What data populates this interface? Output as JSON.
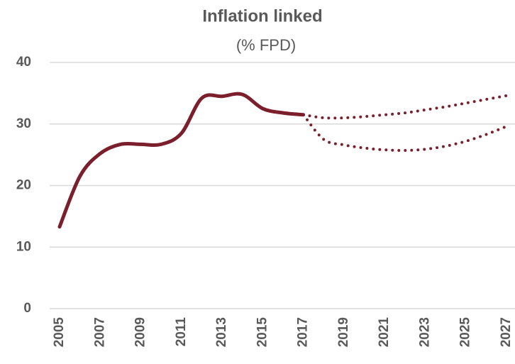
{
  "chart_data": {
    "type": "line",
    "title": "Inflation linked",
    "subtitle": "(% FPD)",
    "x": [
      2005,
      2006,
      2007,
      2008,
      2009,
      2010,
      2011,
      2012,
      2013,
      2014,
      2015,
      2016,
      2017,
      2018,
      2019,
      2020,
      2021,
      2022,
      2023,
      2024,
      2025,
      2026,
      2027
    ],
    "series": [
      {
        "color": "#7a1f2b",
        "style": "solid",
        "values": [
          13.3,
          21.5,
          25.2,
          26.7,
          26.7,
          26.7,
          28.5,
          34.2,
          34.5,
          34.8,
          32.5,
          31.8,
          31.5,
          null,
          null,
          null,
          null,
          null,
          null,
          null,
          null,
          null,
          null
        ]
      },
      {
        "color": "#7a1f2b",
        "style": "dotted",
        "values": [
          null,
          null,
          null,
          null,
          null,
          null,
          null,
          null,
          null,
          null,
          null,
          null,
          31.5,
          31.0,
          31.0,
          31.2,
          31.5,
          31.8,
          32.3,
          32.8,
          33.4,
          34.0,
          34.6
        ]
      },
      {
        "color": "#7a1f2b",
        "style": "dotted",
        "values": [
          null,
          null,
          null,
          null,
          null,
          null,
          null,
          null,
          null,
          null,
          null,
          null,
          31.5,
          27.5,
          26.6,
          26.1,
          25.8,
          25.7,
          25.9,
          26.4,
          27.2,
          28.3,
          29.6
        ]
      }
    ],
    "xlim": [
      2005,
      2027
    ],
    "xticks": [
      2005,
      2007,
      2009,
      2011,
      2013,
      2015,
      2017,
      2019,
      2021,
      2023,
      2025,
      2027
    ],
    "ylim": [
      0,
      40
    ],
    "yticks": [
      0,
      10,
      20,
      30,
      40
    ],
    "grid": true
  }
}
